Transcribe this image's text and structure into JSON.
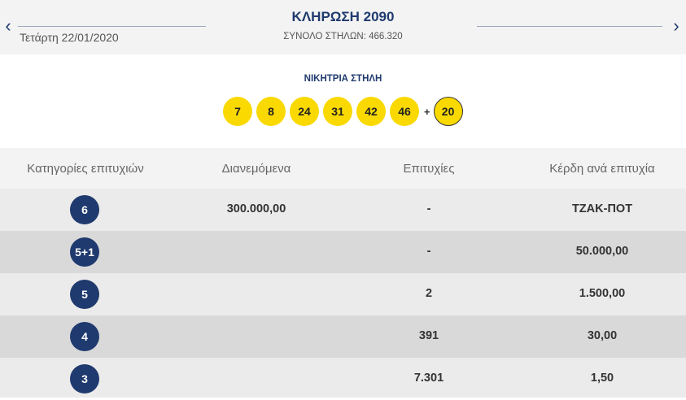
{
  "header": {
    "draw_title": "ΚΛΗΡΩΣΗ 2090",
    "draw_date": "Τετάρτη 22/01/2020",
    "total_columns": "ΣΥΝΟΛΟ ΣΤΗΛΩΝ: 466.320",
    "prev_icon": "chevron-left-icon",
    "next_icon": "chevron-right-icon"
  },
  "winning": {
    "label": "ΝΙΚΗΤΡΙΑ ΣΤΗΛΗ",
    "numbers": [
      "7",
      "8",
      "24",
      "31",
      "42",
      "46"
    ],
    "plus": "+",
    "bonus": "20"
  },
  "table": {
    "headers": [
      "Κατηγορίες επιτυχιών",
      "Διανεμόμενα",
      "Επιτυχίες",
      "Κέρδη ανά επιτυχία"
    ],
    "rows": [
      {
        "category": "6",
        "distributed": "300.000,00",
        "winners": "-",
        "prize": "ΤΖΑΚ-ΠΟΤ"
      },
      {
        "category": "5+1",
        "distributed": "",
        "winners": "-",
        "prize": "50.000,00"
      },
      {
        "category": "5",
        "distributed": "",
        "winners": "2",
        "prize": "1.500,00"
      },
      {
        "category": "4",
        "distributed": "",
        "winners": "391",
        "prize": "30,00"
      },
      {
        "category": "3",
        "distributed": "",
        "winners": "7.301",
        "prize": "1,50"
      }
    ]
  },
  "colors": {
    "navy": "#1f3a6e",
    "ball_yellow": "#f9d900",
    "row_light": "#ebebeb",
    "row_dark": "#d9d9d9",
    "header_bg": "#f3f3f3"
  }
}
